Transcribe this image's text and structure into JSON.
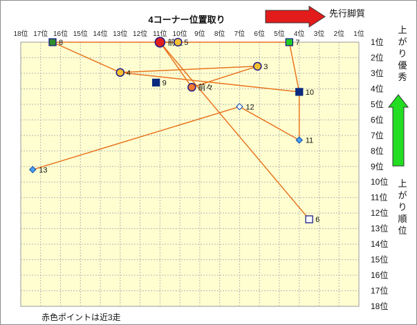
{
  "chart_data": {
    "type": "scatter",
    "title": "4コーナー位置取り",
    "x_tick_labels": [
      "18位",
      "17位",
      "16位",
      "15位",
      "14位",
      "13位",
      "12位",
      "11位",
      "10位",
      "9位",
      "8位",
      "7位",
      "6位",
      "5位",
      "4位",
      "3位",
      "2位",
      "1位"
    ],
    "y_tick_labels": [
      "1位",
      "2位",
      "3位",
      "4位",
      "5位",
      "6位",
      "7位",
      "8位",
      "9位",
      "10位",
      "11位",
      "12位",
      "13位",
      "14位",
      "15位",
      "16位",
      "17位",
      "18位"
    ],
    "xlim": [
      18,
      1
    ],
    "ylim": [
      1,
      18
    ],
    "x_arrow_label": "先行脚質",
    "y_top_label": "上がり優秀",
    "y_bottom_label": "上がり順位",
    "footnote": "赤色ポイントは近3走",
    "line_color": "#e8731f",
    "points": [
      {
        "label": "8",
        "x": 16.4,
        "y": 1.0,
        "shape": "square",
        "fill": "#2e8b2e",
        "stroke": "#1a1a8a"
      },
      {
        "label": "前走",
        "x": 11.0,
        "y": 1.0,
        "shape": "circle",
        "fill": "#e02020",
        "stroke": "#1a1a8a",
        "size": "large"
      },
      {
        "label": "5",
        "x": 10.1,
        "y": 1.0,
        "shape": "circle",
        "fill": "#f3c030",
        "stroke": "#1a1a8a"
      },
      {
        "label": "7",
        "x": 4.5,
        "y": 1.0,
        "shape": "square",
        "fill": "#22cc22",
        "stroke": "#1a1a8a"
      },
      {
        "label": "3",
        "x": 6.1,
        "y": 2.55,
        "shape": "circle",
        "fill": "#f3c030",
        "stroke": "#1a1a8a"
      },
      {
        "label": "4",
        "x": 13.0,
        "y": 2.95,
        "shape": "circle",
        "fill": "#f3c030",
        "stroke": "#1a1a8a"
      },
      {
        "label": "9",
        "x": 11.2,
        "y": 3.6,
        "shape": "square",
        "fill": "#0b2a80",
        "stroke": "#0b2a80"
      },
      {
        "label": "前々",
        "x": 9.4,
        "y": 3.9,
        "shape": "circle",
        "fill": "#f07830",
        "stroke": "#1a1a8a"
      },
      {
        "label": "10",
        "x": 4.0,
        "y": 4.2,
        "shape": "square",
        "fill": "#0b2a80",
        "stroke": "#0b2a80"
      },
      {
        "label": "12",
        "x": 7.0,
        "y": 5.15,
        "shape": "diamond",
        "fill": "#ffffff",
        "stroke": "#1a5ab0"
      },
      {
        "label": "11",
        "x": 4.0,
        "y": 7.3,
        "shape": "diamond",
        "fill": "#4aa0f0",
        "stroke": "#1a5ab0"
      },
      {
        "label": "13",
        "x": 17.4,
        "y": 9.2,
        "shape": "diamond",
        "fill": "#4aa0f0",
        "stroke": "#1a5ab0"
      },
      {
        "label": "6",
        "x": 3.5,
        "y": 12.4,
        "shape": "square",
        "fill": "#ffffff",
        "stroke": "#1a1a8a"
      }
    ],
    "path_order": [
      "6",
      "前走",
      "前々",
      "3",
      "4",
      "8",
      "7",
      "10",
      "11",
      "12",
      "13"
    ],
    "extra_path_order": [
      "前走",
      "5"
    ],
    "extra_path_order2": [
      "4",
      "10"
    ]
  }
}
